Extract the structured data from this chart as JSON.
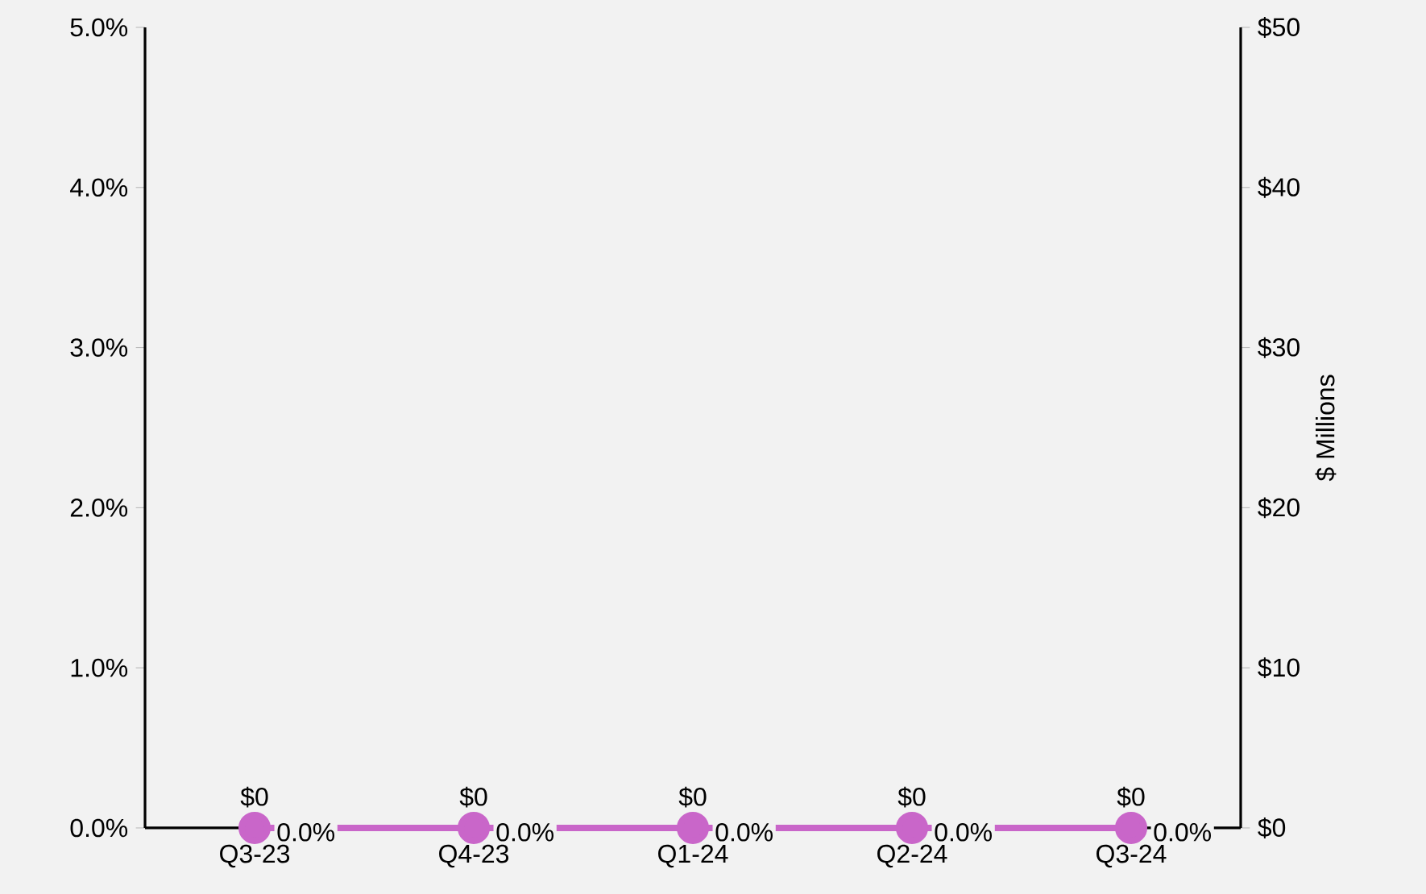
{
  "chart_data": {
    "type": "bar",
    "categories": [
      "Q3-23",
      "Q4-23",
      "Q1-24",
      "Q2-24",
      "Q3-24"
    ],
    "series": [
      {
        "axis": "y2",
        "color": "#4472c4",
        "values": [
          0,
          0,
          0,
          0,
          0
        ],
        "value_labels": [
          "$0",
          "$0",
          "$0",
          "$0",
          "$0"
        ]
      },
      {
        "type": "line",
        "axis": "y",
        "color": "#c966c9",
        "marker": "circle",
        "values": [
          0,
          0,
          0,
          0,
          0
        ],
        "value_labels": [
          "0.0%",
          "0.0%",
          "0.0%",
          "0.0%",
          "0.0%"
        ]
      }
    ],
    "y2label": "$ Millions",
    "ylim": [
      0,
      5
    ],
    "yticks": [
      {
        "value": 0,
        "label": "0.0%"
      },
      {
        "value": 1,
        "label": "1.0%"
      },
      {
        "value": 2,
        "label": "2.0%"
      },
      {
        "value": 3,
        "label": "3.0%"
      },
      {
        "value": 4,
        "label": "4.0%"
      },
      {
        "value": 5,
        "label": "5.0%"
      }
    ],
    "y2lim": [
      0,
      50
    ],
    "y2ticks": [
      {
        "value": 0,
        "label": "$0"
      },
      {
        "value": 10,
        "label": "$10"
      },
      {
        "value": 20,
        "label": "$20"
      },
      {
        "value": 30,
        "label": "$30"
      },
      {
        "value": 40,
        "label": "$40"
      },
      {
        "value": 50,
        "label": "$50"
      }
    ]
  }
}
